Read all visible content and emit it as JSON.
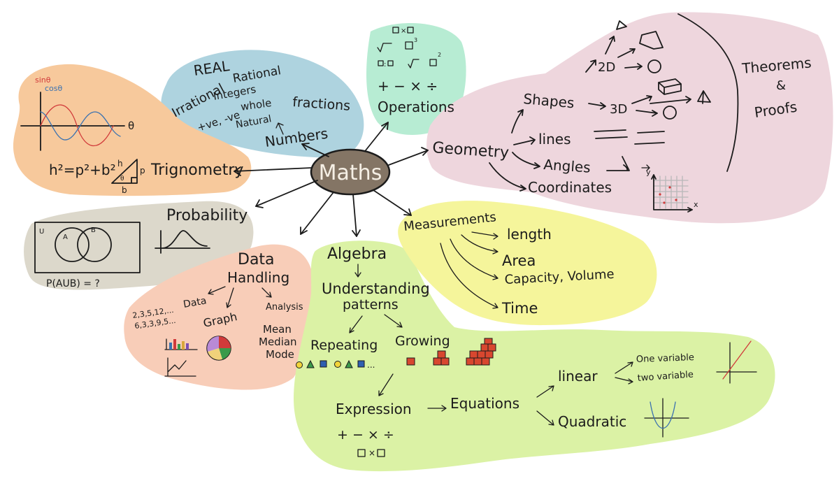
{
  "center": {
    "label": "Maths"
  },
  "colors": {
    "numbers_blob": "#aed3df",
    "operations_blob": "#b7ecd3",
    "geometry_blob": "#eed6dd",
    "trig_blob": "#f7c99c",
    "probability_blob": "#dcd8cb",
    "data_blob": "#f8cdb8",
    "algebra_blob": "#dbf2a5",
    "measurement_blob": "#f5f59b",
    "center_fill": "#847565",
    "sine_color": "#d13a3a",
    "cos_color": "#3b72b0"
  },
  "numbers": {
    "heading": "REAL",
    "irrational": "Irrational",
    "rational": "Rational",
    "integers": "Integers",
    "signed": "+ve, -ve",
    "whole": "whole",
    "natural": "Natural",
    "fractions": "fractions",
    "label": "Numbers"
  },
  "operations": {
    "symbols": "+  −  ×  ÷",
    "label": "Operations"
  },
  "geometry": {
    "label": "Geometry",
    "shapes": "Shapes",
    "two_d": "2D",
    "three_d": "3D",
    "lines": "lines",
    "angles": "Angles",
    "coordinates": "Coordinates",
    "theorems": "Theorems",
    "amp": "&",
    "proofs": "Proofs",
    "axis_x": "x",
    "axis_y": "y"
  },
  "trig": {
    "sin": "sinθ",
    "cos": "cosθ",
    "theta": "θ",
    "formula": "h²=p²+b²",
    "tri_h": "h",
    "tri_p": "p",
    "tri_b": "b",
    "tri_theta": "θ",
    "label": "Trignometry"
  },
  "probability": {
    "label": "Probability",
    "u": "U",
    "a": "A",
    "b": "B",
    "formula": "P(AUB) = ?"
  },
  "data": {
    "title_1": "Data",
    "title_2": "Handling",
    "data": "Data",
    "seq1": "2,3,5,12,...",
    "seq2": "6,3,3,9,5...",
    "graph": "Graph",
    "analysis": "Analysis",
    "mean": "Mean",
    "median": "Median",
    "mode": "Mode"
  },
  "algebra": {
    "label": "Algebra",
    "understanding": "Understanding",
    "patterns": "patterns",
    "repeating": "Repeating",
    "growing": "Growing",
    "ellipsis": "...",
    "expression": "Expression",
    "equations": "Equations",
    "linear": "linear",
    "one_var": "One variable",
    "two_var": "two variable",
    "quadratic": "Quadratic",
    "ops": "+  −  ×  ÷"
  },
  "measurements": {
    "label": "Measurements",
    "length": "length",
    "area": "Area",
    "capacity": "Capacity, Volume",
    "time": "Time"
  }
}
